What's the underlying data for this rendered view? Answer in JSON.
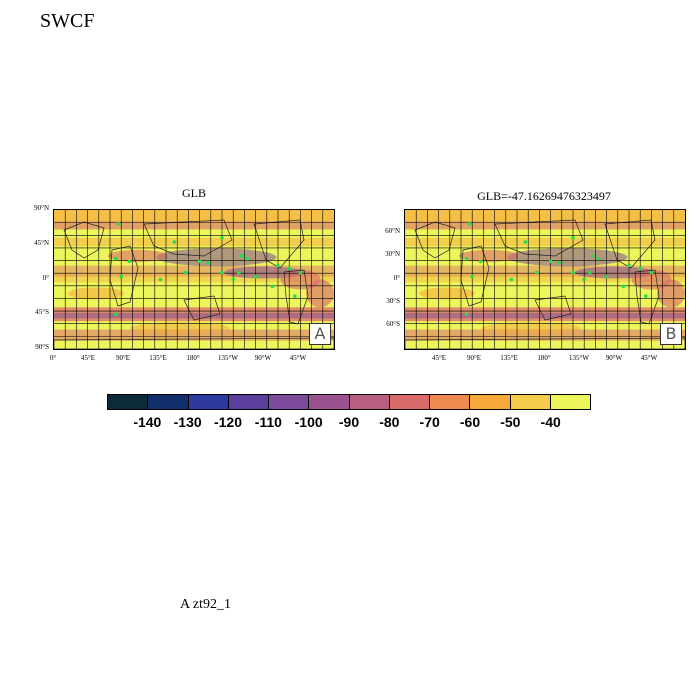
{
  "title": "SWCF",
  "footer": "A  zt92_1",
  "panels": [
    {
      "label": "GLB",
      "tag": "A",
      "lat_ticks": [
        "90°N",
        "45°N",
        "0°",
        "45°S",
        "90°S"
      ],
      "lon_ticks": [
        "0°",
        "45°E",
        "90°E",
        "135°E",
        "180°",
        "135°W",
        "90°W",
        "45°W"
      ]
    },
    {
      "label": "GLB=-47.16269476323497",
      "tag": "B",
      "lat_ticks": [
        "60°N",
        "30°N",
        "0°",
        "30°S",
        "60°S"
      ],
      "lon_ticks": [
        "45°E",
        "90°E",
        "135°E",
        "180°",
        "135°W",
        "90°W",
        "45°W"
      ]
    }
  ],
  "colorbar": {
    "labels": [
      "-140",
      "-130",
      "-120",
      "-110",
      "-100",
      "-90",
      "-80",
      "-70",
      "-60",
      "-50",
      "-40"
    ],
    "colors": [
      "#0d2a3a",
      "#102f6b",
      "#2d3a9e",
      "#5b3f9c",
      "#7c4a9b",
      "#9a5290",
      "#b85e80",
      "#d96b6b",
      "#ef8b4e",
      "#f6a83a",
      "#f5cc4a",
      "#edf55c"
    ]
  },
  "map_colors": {
    "ocean_high": "#edf55c",
    "mid": "#f6a83a",
    "low": "#d96b6b",
    "deep": "#7c4a9b",
    "marker": "#22e04a",
    "coast": "#222222"
  }
}
